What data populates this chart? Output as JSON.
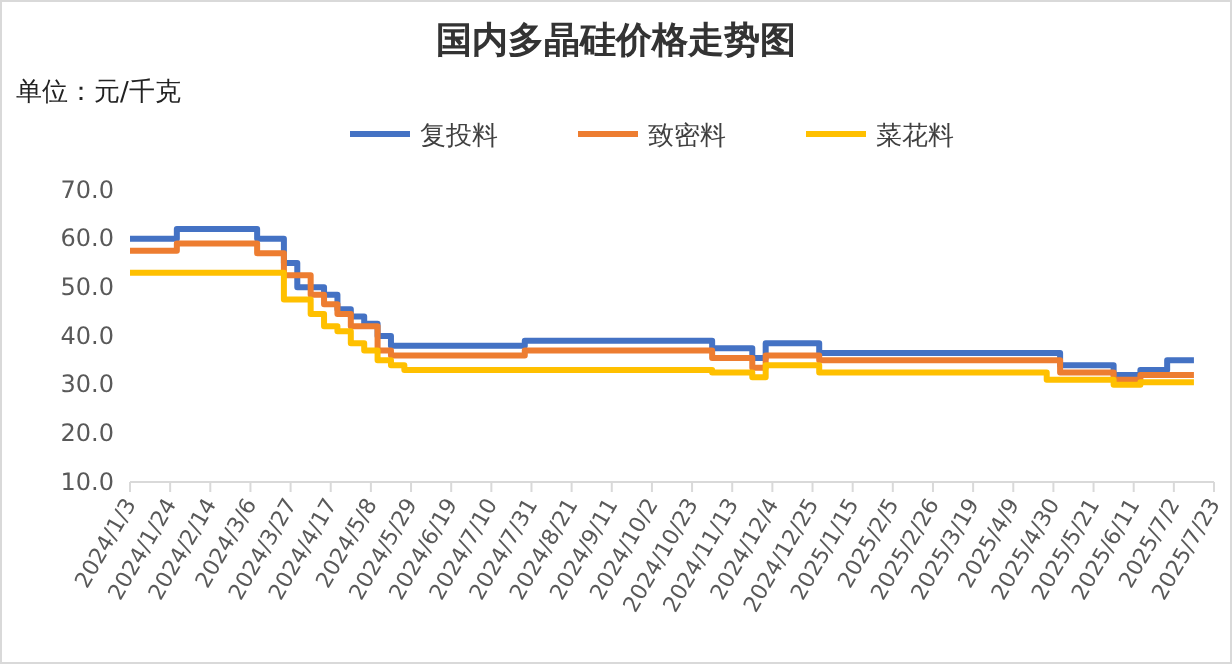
{
  "chart_data": {
    "type": "step",
    "title": "国内多晶硅价格走势图",
    "ylabel": "单位：元/千克",
    "categories": [
      "2024/1/3",
      null,
      null,
      "2024/1/24",
      null,
      null,
      "2024/2/14",
      null,
      null,
      "2024/3/6",
      null,
      null,
      "2024/3/27",
      null,
      null,
      "2024/4/17",
      null,
      null,
      "2024/5/8",
      null,
      null,
      "2024/5/29",
      null,
      null,
      "2024/6/19",
      null,
      null,
      "2024/7/10",
      null,
      null,
      "2024/7/31",
      null,
      null,
      "2024/8/21",
      null,
      null,
      "2024/9/11",
      null,
      null,
      "2024/10/2",
      null,
      null,
      "2024/10/23",
      null,
      null,
      "2024/11/13",
      null,
      null,
      "2024/12/4",
      null,
      null,
      "2024/12/25",
      null,
      null,
      "2025/1/15",
      null,
      null,
      "2025/2/5",
      null,
      null,
      "2025/2/26",
      null,
      null,
      "2025/3/19",
      null,
      null,
      "2025/4/9",
      null,
      null,
      "2025/4/30",
      null,
      null,
      "2025/5/21",
      null,
      null,
      "2025/6/11",
      null,
      null,
      "2025/7/2",
      null,
      null,
      "2025/7/23"
    ],
    "series": [
      {
        "name": "复投料",
        "color": "#4472c4",
        "values": [
          60,
          60,
          60,
          60,
          62,
          62,
          62,
          62,
          62,
          62,
          60,
          60,
          55,
          50,
          50,
          48.5,
          45.5,
          44,
          42.5,
          40,
          38,
          38,
          38,
          38,
          38,
          38,
          38,
          38,
          38,
          38,
          39,
          39,
          39,
          39,
          39,
          39,
          39,
          39,
          39,
          39,
          39,
          39,
          39,
          39,
          37.5,
          37.5,
          37.5,
          35.5,
          38.5,
          38.5,
          38.5,
          38.5,
          36.5,
          36.5,
          36.5,
          36.5,
          36.5,
          36.5,
          36.5,
          36.5,
          36.5,
          36.5,
          36.5,
          36.5,
          36.5,
          36.5,
          36.5,
          36.5,
          36.5,
          36.5,
          34,
          34,
          34,
          34,
          32,
          32,
          33,
          33,
          35,
          35,
          null,
          null
        ]
      },
      {
        "name": "致密料",
        "color": "#ed7d31",
        "values": [
          57.5,
          57.5,
          57.5,
          57.5,
          59,
          59,
          59,
          59,
          59,
          59,
          57,
          57,
          52.5,
          52.5,
          48.5,
          46.5,
          44.5,
          42,
          42,
          37,
          36,
          36,
          36,
          36,
          36,
          36,
          36,
          36,
          36,
          36,
          37,
          37,
          37,
          37,
          37,
          37,
          37,
          37,
          37,
          37,
          37,
          37,
          37,
          37,
          35.5,
          35.5,
          35.5,
          33.5,
          36,
          36,
          36,
          36,
          35,
          35,
          35,
          35,
          35,
          35,
          35,
          35,
          35,
          35,
          35,
          35,
          35,
          35,
          35,
          35,
          35,
          35,
          32.5,
          32.5,
          32.5,
          32.5,
          31,
          31,
          32,
          32,
          32,
          32,
          null,
          null
        ]
      },
      {
        "name": "菜花料",
        "color": "#ffc000",
        "values": [
          53,
          53,
          53,
          53,
          53,
          53,
          53,
          53,
          53,
          53,
          53,
          53,
          47.5,
          47.5,
          44.5,
          42,
          41,
          38.5,
          37,
          35,
          34,
          33,
          33,
          33,
          33,
          33,
          33,
          33,
          33,
          33,
          33,
          33,
          33,
          33,
          33,
          33,
          33,
          33,
          33,
          33,
          33,
          33,
          33,
          33,
          32.5,
          32.5,
          32.5,
          31.5,
          34,
          34,
          34,
          34,
          32.5,
          32.5,
          32.5,
          32.5,
          32.5,
          32.5,
          32.5,
          32.5,
          32.5,
          32.5,
          32.5,
          32.5,
          32.5,
          32.5,
          32.5,
          32.5,
          32.5,
          31,
          31,
          31,
          31,
          31,
          30,
          30,
          30.5,
          30.5,
          30.5,
          30.5,
          null,
          null
        ]
      }
    ],
    "ylim": [
      10,
      70
    ],
    "yticks": [
      {
        "value": 10,
        "label": "10.0"
      },
      {
        "value": 20,
        "label": "20.0"
      },
      {
        "value": 30,
        "label": "30.0"
      },
      {
        "value": 40,
        "label": "40.0"
      },
      {
        "value": 50,
        "label": "50.0"
      },
      {
        "value": 60,
        "label": "60.0"
      },
      {
        "value": 70,
        "label": "70.0"
      }
    ],
    "grid": false,
    "legend": "top"
  }
}
